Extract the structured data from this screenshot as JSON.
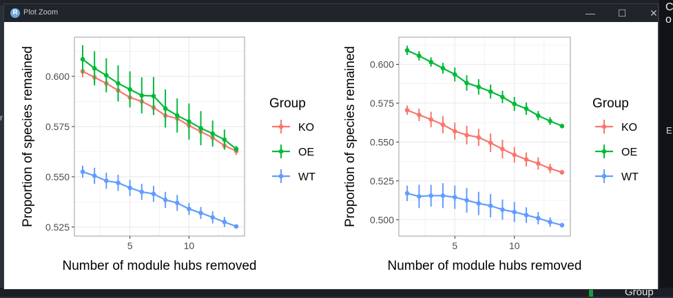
{
  "window": {
    "title": "Plot Zoom",
    "app_icon_letter": "R",
    "minimize_glyph": "—",
    "maximize_glyph": "☐",
    "close_glyph": "✕"
  },
  "background": {
    "right_edge_text": "C\no",
    "left_edge_text": "r",
    "bottom_peek_text": "Group",
    "right_letter": "E"
  },
  "colors": {
    "KO": "#F8766D",
    "OE": "#00BA38",
    "WT": "#619CFF",
    "panel_border": "#b3b3b3",
    "grid": "#ebebeb"
  },
  "chart_data": [
    {
      "type": "line",
      "title": "",
      "xlabel": "Number of module hubs removed",
      "ylabel": "Proportion of species remained",
      "xlim": [
        0.3,
        14.7
      ],
      "ylim": [
        0.5205,
        0.6195
      ],
      "xticks": [
        5,
        10
      ],
      "yticks": [
        0.525,
        0.55,
        0.575,
        0.6
      ],
      "ytick_labels": [
        "0.525",
        "0.550",
        "0.575",
        "0.600"
      ],
      "legend_title": "Group",
      "legend_position": "right",
      "x": [
        1,
        2,
        3,
        4,
        5,
        6,
        7,
        8,
        9,
        10,
        11,
        12,
        13,
        14
      ],
      "series": [
        {
          "name": "KO",
          "values": [
            0.6025,
            0.5995,
            0.5965,
            0.593,
            0.5895,
            0.5875,
            0.5845,
            0.5805,
            0.579,
            0.5755,
            0.5725,
            0.5695,
            0.5655,
            0.5628
          ],
          "err": [
            0.003,
            0.003,
            0.003,
            0.003,
            0.003,
            0.003,
            0.003,
            0.003,
            0.003,
            0.003,
            0.003,
            0.003,
            0.002,
            0.002
          ]
        },
        {
          "name": "OE",
          "values": [
            0.6085,
            0.604,
            0.6005,
            0.5965,
            0.5935,
            0.5905,
            0.5902,
            0.584,
            0.5805,
            0.5775,
            0.5742,
            0.5715,
            0.5685,
            0.5638
          ],
          "err": [
            0.007,
            0.0085,
            0.0085,
            0.009,
            0.009,
            0.009,
            0.0095,
            0.0095,
            0.0085,
            0.009,
            0.0085,
            0.0065,
            0.005,
            0.0015
          ]
        },
        {
          "name": "WT",
          "values": [
            0.5525,
            0.5505,
            0.548,
            0.547,
            0.5445,
            0.5425,
            0.5415,
            0.5385,
            0.537,
            0.534,
            0.532,
            0.5298,
            0.5275,
            0.5253
          ],
          "err": [
            0.003,
            0.004,
            0.004,
            0.004,
            0.004,
            0.004,
            0.004,
            0.004,
            0.004,
            0.003,
            0.003,
            0.003,
            0.0025,
            0.001
          ]
        }
      ]
    },
    {
      "type": "line",
      "title": "",
      "xlabel": "Number of module hubs removed",
      "ylabel": "Proportion of species remained",
      "xlim": [
        0.3,
        14.7
      ],
      "ylim": [
        0.4895,
        0.6175
      ],
      "xticks": [
        5,
        10
      ],
      "yticks": [
        0.5,
        0.525,
        0.55,
        0.575,
        0.6
      ],
      "ytick_labels": [
        "0.500",
        "0.525",
        "0.550",
        "0.575",
        "0.600"
      ],
      "legend_title": "Group",
      "legend_position": "right",
      "x": [
        1,
        2,
        3,
        4,
        5,
        6,
        7,
        8,
        9,
        10,
        11,
        12,
        13,
        14
      ],
      "series": [
        {
          "name": "KO",
          "values": [
            0.5705,
            0.5675,
            0.5645,
            0.5612,
            0.557,
            0.5545,
            0.553,
            0.5495,
            0.5455,
            0.5418,
            0.5388,
            0.5362,
            0.533,
            0.5305
          ],
          "err": [
            0.003,
            0.004,
            0.005,
            0.0055,
            0.0055,
            0.006,
            0.0055,
            0.006,
            0.006,
            0.005,
            0.0045,
            0.004,
            0.003,
            0.0015
          ]
        },
        {
          "name": "OE",
          "values": [
            0.609,
            0.6055,
            0.6015,
            0.5975,
            0.5935,
            0.588,
            0.5855,
            0.5825,
            0.579,
            0.5745,
            0.5715,
            0.567,
            0.5635,
            0.5603
          ],
          "err": [
            0.003,
            0.003,
            0.003,
            0.0035,
            0.0045,
            0.005,
            0.005,
            0.0045,
            0.004,
            0.0045,
            0.004,
            0.003,
            0.0025,
            0.0015
          ]
        },
        {
          "name": "WT",
          "values": [
            0.517,
            0.515,
            0.5155,
            0.5155,
            0.5145,
            0.5125,
            0.5105,
            0.509,
            0.5065,
            0.505,
            0.503,
            0.501,
            0.4985,
            0.4965
          ],
          "err": [
            0.005,
            0.0075,
            0.007,
            0.008,
            0.0075,
            0.008,
            0.0075,
            0.0075,
            0.0065,
            0.0065,
            0.005,
            0.004,
            0.003,
            0.0015
          ]
        }
      ]
    }
  ]
}
